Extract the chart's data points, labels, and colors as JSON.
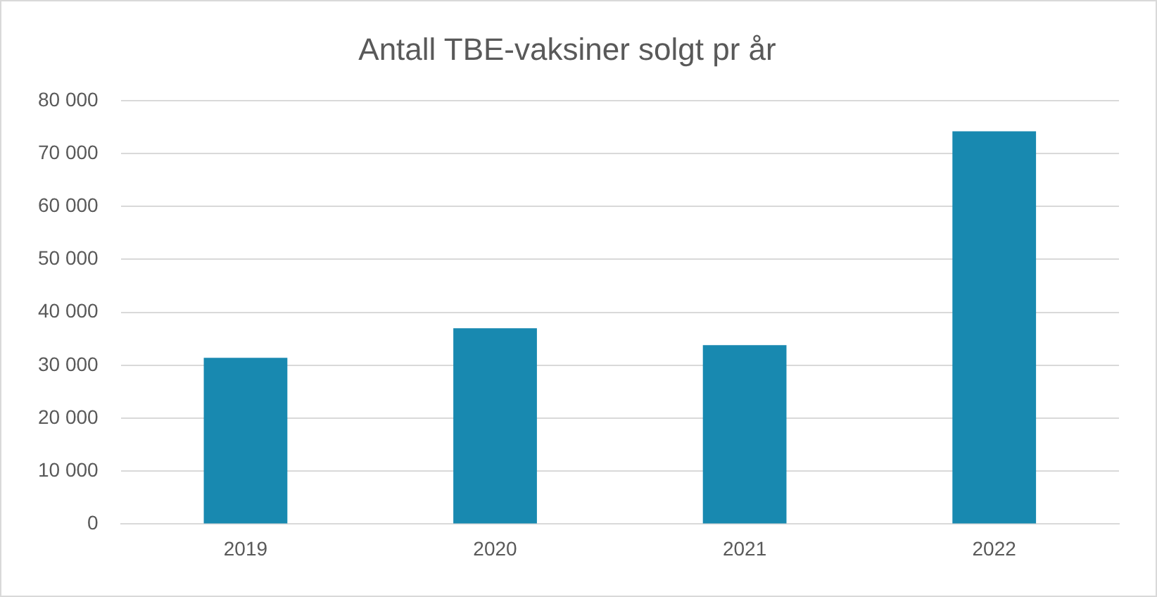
{
  "chart_data": {
    "type": "bar",
    "title": "Antall TBE-vaksiner solgt pr år",
    "categories": [
      "2019",
      "2020",
      "2021",
      "2022"
    ],
    "values": [
      31400,
      37000,
      33800,
      74200
    ],
    "color": "#1889b0",
    "ylim": [
      0,
      80000
    ],
    "yticks": [
      0,
      {
        "value": 10000,
        "label": "10 000"
      },
      {
        "value": 20000,
        "label": "20 000"
      },
      {
        "value": 30000,
        "label": "30 000"
      },
      {
        "value": 40000,
        "label": "40 000"
      },
      {
        "value": 50000,
        "label": "50 000"
      },
      {
        "value": 60000,
        "label": "60 000"
      },
      {
        "value": 70000,
        "label": "70 000"
      },
      {
        "value": 80000,
        "label": "80 000"
      }
    ],
    "grid": "y"
  }
}
